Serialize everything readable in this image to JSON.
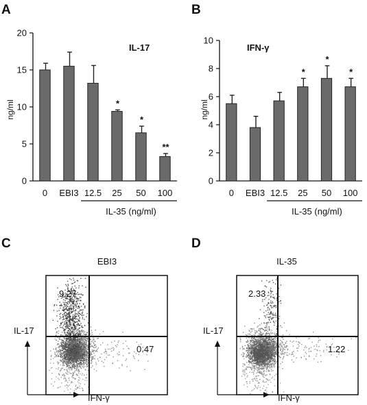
{
  "panels": {
    "a": {
      "label": "A"
    },
    "b": {
      "label": "B"
    },
    "c": {
      "label": "C"
    },
    "d": {
      "label": "D"
    }
  },
  "chart_data": [
    {
      "type": "bar",
      "title": "IL-17",
      "ylabel": "ng/ml",
      "ylim": [
        0,
        20
      ],
      "yticks": [
        "0",
        "5",
        "10",
        "15",
        "20"
      ],
      "categories": [
        "0",
        "EBI3",
        "12.5",
        "25",
        "50",
        "100"
      ],
      "group_label": "IL-35 (ng/ml)",
      "values": [
        15.0,
        15.5,
        13.2,
        9.4,
        6.5,
        3.3
      ],
      "errors": [
        0.9,
        1.9,
        2.4,
        0.2,
        0.9,
        0.4
      ],
      "significance": [
        "",
        "",
        "",
        "*",
        "*",
        "**"
      ]
    },
    {
      "type": "bar",
      "title": "IFN-γ",
      "ylabel": "ng/ml",
      "ylim": [
        0,
        10
      ],
      "yticks": [
        "0",
        "2",
        "4",
        "6",
        "8",
        "10"
      ],
      "categories": [
        "0",
        "EBI3",
        "12.5",
        "25",
        "50",
        "100"
      ],
      "group_label": "IL-35 (ng/ml)",
      "values": [
        5.5,
        3.8,
        5.7,
        6.7,
        7.3,
        6.7
      ],
      "errors": [
        0.6,
        0.8,
        0.6,
        0.6,
        0.9,
        0.6
      ],
      "significance": [
        "",
        "",
        "",
        "*",
        "*",
        "*"
      ]
    },
    {
      "type": "scatter",
      "title": "EBI3",
      "ylabel": "IL-17",
      "xlabel": "IFN-γ",
      "quadrant_values": [
        "9.27",
        "0.47"
      ]
    },
    {
      "type": "scatter",
      "title": "IL-35",
      "ylabel": "IL-17",
      "xlabel": "IFN-γ",
      "quadrant_values": [
        "2.33",
        "1.22"
      ]
    }
  ]
}
